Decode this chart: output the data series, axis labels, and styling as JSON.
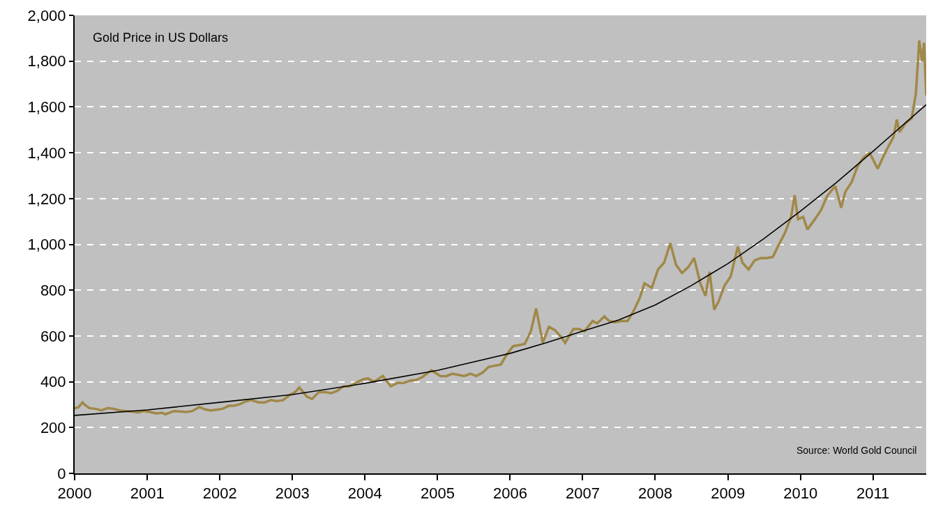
{
  "chart_data": {
    "type": "line",
    "xlim": [
      "2000-01-01",
      "2011-09-26"
    ],
    "xticks": [
      "2000",
      "2001",
      "2002",
      "2003",
      "2004",
      "2005",
      "2006",
      "2007",
      "2008",
      "2009",
      "2010",
      "2011"
    ],
    "ylim": [
      0,
      2000
    ],
    "yticks": [
      {
        "value": 0,
        "label": "0"
      },
      {
        "value": 200,
        "label": "200"
      },
      {
        "value": 400,
        "label": "400"
      },
      {
        "value": 600,
        "label": "600"
      },
      {
        "value": 800,
        "label": "800"
      },
      {
        "value": 1000,
        "label": "1,000"
      },
      {
        "value": 1200,
        "label": "1,200"
      },
      {
        "value": 1400,
        "label": "1,400"
      },
      {
        "value": 1600,
        "label": "1,600"
      },
      {
        "value": 1800,
        "label": "1,800"
      },
      {
        "value": 2000,
        "label": "2,000"
      }
    ],
    "grid": "y",
    "annotations": [
      "Gold Price in US Dollars",
      "Source: World Gold Council"
    ],
    "series": [
      {
        "color": "#a08848",
        "x": [
          "2000-01-01",
          "2000-01-20",
          "2000-02-10",
          "2000-02-20",
          "2000-03-15",
          "2000-04-15",
          "2000-05-15",
          "2000-06-15",
          "2000-07-15",
          "2000-08-15",
          "2000-09-15",
          "2000-10-15",
          "2000-11-15",
          "2000-12-15",
          "2001-01-15",
          "2001-02-15",
          "2001-03-15",
          "2001-04-01",
          "2001-05-15",
          "2001-06-15",
          "2001-07-15",
          "2001-08-15",
          "2001-09-20",
          "2001-10-15",
          "2001-11-15",
          "2001-12-15",
          "2002-01-15",
          "2002-02-15",
          "2002-03-15",
          "2002-04-15",
          "2002-05-15",
          "2002-06-05",
          "2002-07-15",
          "2002-08-15",
          "2002-09-15",
          "2002-10-15",
          "2002-11-15",
          "2002-12-15",
          "2003-01-15",
          "2003-02-05",
          "2003-03-15",
          "2003-04-10",
          "2003-05-15",
          "2003-06-15",
          "2003-07-15",
          "2003-08-15",
          "2003-09-15",
          "2003-10-15",
          "2003-11-15",
          "2003-12-20",
          "2004-01-15",
          "2004-02-15",
          "2004-03-31",
          "2004-05-10",
          "2004-06-15",
          "2004-07-15",
          "2004-08-15",
          "2004-09-15",
          "2004-10-15",
          "2004-12-01",
          "2005-01-15",
          "2005-02-15",
          "2005-03-15",
          "2005-04-15",
          "2005-05-15",
          "2005-06-15",
          "2005-07-15",
          "2005-08-15",
          "2005-09-15",
          "2005-10-15",
          "2005-11-15",
          "2005-12-12",
          "2006-01-15",
          "2006-02-15",
          "2006-03-15",
          "2006-04-15",
          "2006-05-12",
          "2006-06-14",
          "2006-07-15",
          "2006-08-15",
          "2006-09-15",
          "2006-10-05",
          "2006-11-15",
          "2006-12-15",
          "2007-01-10",
          "2007-02-20",
          "2007-03-15",
          "2007-04-20",
          "2007-05-15",
          "2007-06-15",
          "2007-07-15",
          "2007-08-15",
          "2007-09-15",
          "2007-10-15",
          "2007-11-08",
          "2007-12-15",
          "2008-01-15",
          "2008-02-15",
          "2008-03-17",
          "2008-04-15",
          "2008-05-15",
          "2008-06-15",
          "2008-07-15",
          "2008-08-15",
          "2008-09-10",
          "2008-10-01",
          "2008-10-24",
          "2008-11-15",
          "2008-12-15",
          "2009-01-15",
          "2009-02-20",
          "2009-03-15",
          "2009-04-15",
          "2009-05-15",
          "2009-06-15",
          "2009-07-15",
          "2009-08-15",
          "2009-09-15",
          "2009-10-15",
          "2009-11-15",
          "2009-12-03",
          "2009-12-20",
          "2010-01-15",
          "2010-02-05",
          "2010-03-15",
          "2010-04-15",
          "2010-05-15",
          "2010-06-25",
          "2010-07-25",
          "2010-08-15",
          "2010-09-15",
          "2010-10-15",
          "2010-11-15",
          "2010-12-15",
          "2011-01-25",
          "2011-02-15",
          "2011-03-15",
          "2011-04-15",
          "2011-05-01",
          "2011-05-15",
          "2011-06-15",
          "2011-07-15",
          "2011-08-05",
          "2011-08-22",
          "2011-09-05",
          "2011-09-15",
          "2011-09-26"
        ],
        "values": [
          285,
          288,
          310,
          300,
          285,
          282,
          275,
          285,
          282,
          275,
          272,
          270,
          266,
          272,
          268,
          262,
          265,
          258,
          272,
          270,
          268,
          272,
          290,
          280,
          275,
          278,
          282,
          295,
          295,
          303,
          315,
          320,
          310,
          310,
          320,
          315,
          320,
          340,
          355,
          375,
          335,
          325,
          355,
          355,
          350,
          360,
          380,
          380,
          395,
          410,
          415,
          400,
          425,
          380,
          395,
          395,
          405,
          408,
          420,
          450,
          425,
          425,
          435,
          430,
          425,
          435,
          425,
          440,
          465,
          470,
          475,
          515,
          555,
          560,
          565,
          620,
          720,
          570,
          640,
          625,
          595,
          570,
          630,
          630,
          620,
          665,
          655,
          685,
          665,
          660,
          665,
          665,
          710,
          765,
          830,
          810,
          890,
          920,
          1005,
          910,
          875,
          900,
          940,
          830,
          775,
          880,
          715,
          750,
          820,
          860,
          990,
          920,
          890,
          930,
          940,
          940,
          945,
          1000,
          1050,
          1120,
          1215,
          1110,
          1120,
          1065,
          1110,
          1150,
          1210,
          1255,
          1160,
          1230,
          1270,
          1340,
          1380,
          1400,
          1330,
          1370,
          1420,
          1470,
          1545,
          1490,
          1530,
          1550,
          1660,
          1890,
          1800,
          1880,
          1650
        ]
      },
      {
        "color": "#000000",
        "x": [
          "2000-01-01",
          "2001-01-01",
          "2002-01-01",
          "2003-01-01",
          "2004-01-01",
          "2005-01-01",
          "2006-01-01",
          "2006-07-01",
          "2007-01-01",
          "2007-07-01",
          "2008-01-01",
          "2008-07-01",
          "2009-01-01",
          "2009-07-01",
          "2010-01-01",
          "2010-07-01",
          "2011-01-01",
          "2011-09-26"
        ],
        "values": [
          253,
          277,
          310,
          344,
          393,
          450,
          524,
          570,
          621,
          670,
          735,
          820,
          916,
          1025,
          1145,
          1270,
          1406,
          1610
        ]
      }
    ]
  }
}
